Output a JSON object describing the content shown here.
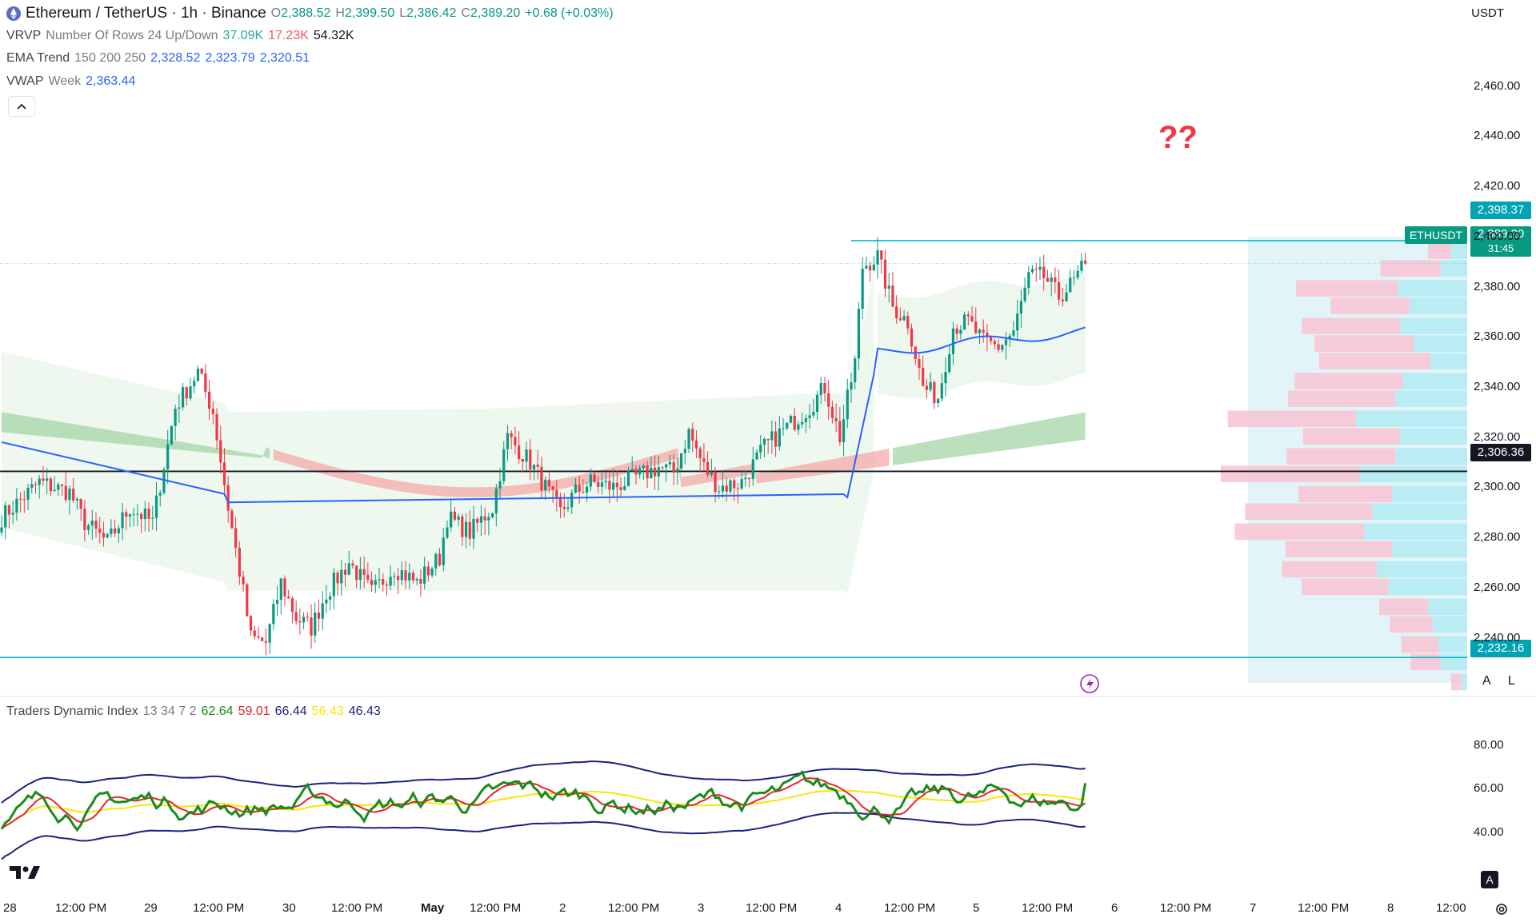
{
  "header": {
    "symbol": "Ethereum / TetherUS · 1h · Binance",
    "o_label": "O",
    "o": "2,388.52",
    "h_label": "H",
    "h": "2,399.50",
    "l_label": "L",
    "l": "2,386.42",
    "c_label": "C",
    "c": "2,389.20",
    "change": "+0.68 (+0.03%)",
    "currency": "USDT"
  },
  "indicators": {
    "vrvp": {
      "name": "VRVP",
      "params": "Number Of Rows 24 Up/Down",
      "up": "37.09K",
      "down": "17.23K",
      "total": "54.32K"
    },
    "ema": {
      "name": "EMA Trend",
      "params": "150 200 250",
      "v1": "2,328.52",
      "v2": "2,323.79",
      "v3": "2,320.51"
    },
    "vwap": {
      "name": "VWAP",
      "params": "Week",
      "value": "2,363.44"
    },
    "tdi": {
      "name": "Traders Dynamic Index",
      "params": "13 34 7 2",
      "v1": "62.64",
      "v2": "59.01",
      "v3": "66.44",
      "v4": "56.43",
      "v5": "46.43"
    }
  },
  "annotation": "??",
  "price_tags": {
    "high_level": "2,398.37",
    "last_symbol": "ETHUSDT",
    "last_price": "2,389.20",
    "countdown": "31:45",
    "mid_level": "2,306.36",
    "low_level": "2,232.16"
  },
  "axis_buttons": {
    "auto": "A",
    "log": "L"
  },
  "colors": {
    "up": "#089981",
    "down": "#f23645",
    "vwap": "#2962ff",
    "level": "#00bcd4",
    "tdi_green": "#1b8a1b",
    "tdi_red": "#e5262b",
    "tdi_yellow": "#f7e60b",
    "tdi_band": "#1a237e"
  },
  "chart_data": {
    "type": "candlestick",
    "price_axis": {
      "ticks": [
        2240,
        2260,
        2280,
        2300,
        2320,
        2340,
        2360,
        2380,
        2400,
        2420,
        2440,
        2460
      ],
      "tick_labels": [
        "2,240.00",
        "2,260.00",
        "2,280.00",
        "2,300.00",
        "2,320.00",
        "2,340.00",
        "2,360.00",
        "2,380.00",
        "2,400.00",
        "2,420.00",
        "2,440.00",
        "2,460.00"
      ],
      "range": [
        2222,
        2472
      ]
    },
    "tdi_axis": {
      "ticks": [
        40,
        60,
        80
      ],
      "tick_labels": [
        "40.00",
        "60.00",
        "80.00"
      ],
      "range": [
        18,
        92
      ]
    },
    "time_labels": [
      "28",
      "12:00 PM",
      "29",
      "12:00 PM",
      "30",
      "12:00 PM",
      "May",
      "12:00 PM",
      "2",
      "12:00 PM",
      "3",
      "12:00 PM",
      "4",
      "12:00 PM",
      "5",
      "12:00 PM",
      "6",
      "12:00 PM",
      "7",
      "12:00 PM",
      "8",
      "12:00"
    ],
    "levels": [
      2398.37,
      2306.36,
      2232.16
    ],
    "last_price": 2389.2,
    "anchors": [
      [
        0,
        2288
      ],
      [
        10,
        2302
      ],
      [
        18,
        2298
      ],
      [
        22,
        2286
      ],
      [
        28,
        2278
      ],
      [
        34,
        2292
      ],
      [
        40,
        2286
      ],
      [
        46,
        2332
      ],
      [
        52,
        2346
      ],
      [
        56,
        2330
      ],
      [
        60,
        2292
      ],
      [
        64,
        2258
      ],
      [
        66,
        2240
      ],
      [
        70,
        2238
      ],
      [
        74,
        2262
      ],
      [
        78,
        2248
      ],
      [
        82,
        2244
      ],
      [
        86,
        2258
      ],
      [
        92,
        2270
      ],
      [
        98,
        2258
      ],
      [
        104,
        2268
      ],
      [
        110,
        2262
      ],
      [
        116,
        2272
      ],
      [
        118,
        2288
      ],
      [
        124,
        2282
      ],
      [
        130,
        2292
      ],
      [
        134,
        2320
      ],
      [
        140,
        2310
      ],
      [
        144,
        2300
      ],
      [
        148,
        2290
      ],
      [
        152,
        2298
      ],
      [
        156,
        2302
      ],
      [
        162,
        2300
      ],
      [
        168,
        2304
      ],
      [
        174,
        2308
      ],
      [
        178,
        2306
      ],
      [
        182,
        2322
      ],
      [
        186,
        2308
      ],
      [
        190,
        2300
      ],
      [
        196,
        2302
      ],
      [
        202,
        2316
      ],
      [
        208,
        2324
      ],
      [
        214,
        2332
      ],
      [
        218,
        2340
      ],
      [
        222,
        2320
      ],
      [
        226,
        2350
      ],
      [
        228,
        2388
      ],
      [
        232,
        2392
      ],
      [
        236,
        2372
      ],
      [
        240,
        2366
      ],
      [
        244,
        2340
      ],
      [
        248,
        2336
      ],
      [
        252,
        2364
      ],
      [
        256,
        2366
      ],
      [
        260,
        2358
      ],
      [
        264,
        2356
      ],
      [
        268,
        2362
      ],
      [
        272,
        2384
      ],
      [
        276,
        2384
      ],
      [
        280,
        2376
      ],
      [
        284,
        2382
      ],
      [
        287,
        2389.2
      ]
    ],
    "volume_profile": [
      {
        "price": 2394,
        "up": 2.0,
        "down": 1.4
      },
      {
        "price": 2387,
        "up": 5.2,
        "down": 2.3
      },
      {
        "price": 2379,
        "up": 8.8,
        "down": 6.0
      },
      {
        "price": 2372,
        "up": 6.8,
        "down": 5.0
      },
      {
        "price": 2364,
        "up": 8.5,
        "down": 5.8
      },
      {
        "price": 2357,
        "up": 8.6,
        "down": 4.6
      },
      {
        "price": 2350,
        "up": 9.6,
        "down": 3.2
      },
      {
        "price": 2342,
        "up": 9.3,
        "down": 5.6
      },
      {
        "price": 2335,
        "up": 9.3,
        "down": 6.2
      },
      {
        "price": 2327,
        "up": 11.1,
        "down": 9.6
      },
      {
        "price": 2320,
        "up": 8.4,
        "down": 5.8
      },
      {
        "price": 2312,
        "up": 9.4,
        "down": 6.2
      },
      {
        "price": 2305,
        "up": 12.0,
        "down": 9.3
      },
      {
        "price": 2297,
        "up": 8.1,
        "down": 6.5
      },
      {
        "price": 2290,
        "up": 11.0,
        "down": 8.2
      },
      {
        "price": 2282,
        "up": 11.2,
        "down": 8.9
      },
      {
        "price": 2275,
        "up": 9.2,
        "down": 6.5
      },
      {
        "price": 2267,
        "up": 8.2,
        "down": 7.8
      },
      {
        "price": 2260,
        "up": 7.5,
        "down": 6.8
      },
      {
        "price": 2252,
        "up": 4.2,
        "down": 3.4
      },
      {
        "price": 2245,
        "up": 3.7,
        "down": 3.0
      },
      {
        "price": 2237,
        "up": 3.2,
        "down": 2.5
      },
      {
        "price": 2230,
        "up": 2.6,
        "down": 2.3
      },
      {
        "price": 2222,
        "up": 0.9,
        "down": 0.5
      }
    ]
  }
}
